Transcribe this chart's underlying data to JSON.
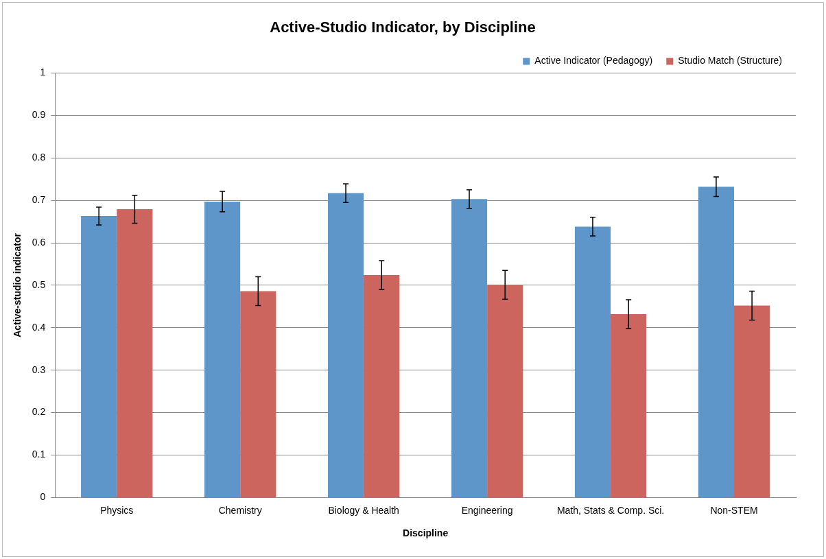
{
  "chart_data": {
    "type": "bar",
    "title": "Active-Studio Indicator, by Discipline",
    "xlabel": "Discipline",
    "ylabel": "Active-studio indicator",
    "categories": [
      "Physics",
      "Chemistry",
      "Biology & Health",
      "Engineering",
      "Math, Stats & Comp. Sci.",
      "Non-STEM"
    ],
    "series": [
      {
        "name": "Active Indicator (Pedagogy)",
        "color": "#5f96c9",
        "values": [
          0.663,
          0.697,
          0.717,
          0.703,
          0.638,
          0.732
        ],
        "errors": [
          0.021,
          0.024,
          0.022,
          0.022,
          0.022,
          0.023
        ]
      },
      {
        "name": "Studio Match (Structure)",
        "color": "#cc655e",
        "values": [
          0.679,
          0.486,
          0.524,
          0.501,
          0.432,
          0.452
        ],
        "errors": [
          0.033,
          0.034,
          0.034,
          0.034,
          0.034,
          0.034
        ]
      }
    ],
    "ylim": [
      0,
      1
    ],
    "yticks": [
      0,
      0.1,
      0.2,
      0.3,
      0.4,
      0.5,
      0.6,
      0.7,
      0.8,
      0.9,
      1
    ],
    "grid": "y",
    "legend": "top right"
  }
}
